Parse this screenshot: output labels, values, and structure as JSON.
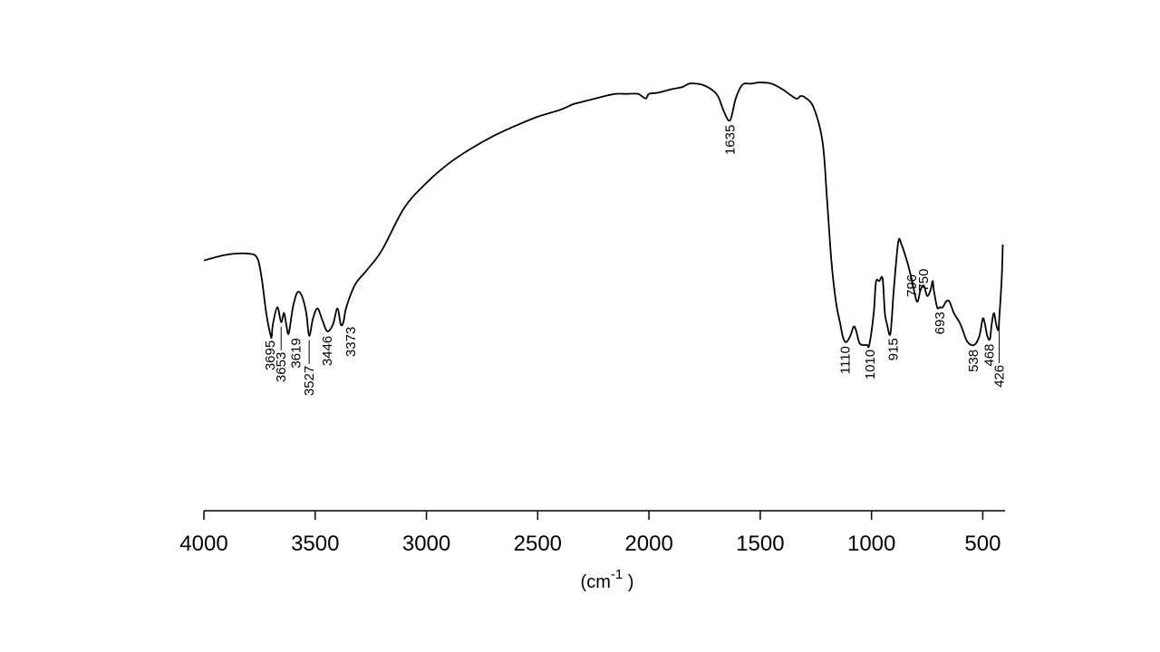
{
  "chart_data": {
    "type": "line",
    "title": "",
    "xlabel": {
      "prefix": "(cm",
      "superscript": "-1",
      "suffix": " )"
    },
    "ylabel": "",
    "xlim": [
      4000,
      400
    ],
    "x_reversed": true,
    "x_ticks": [
      4000,
      3500,
      3000,
      2500,
      2000,
      1500,
      1000,
      500
    ],
    "x_tick_labels": [
      "4000",
      "3500",
      "3000",
      "2500",
      "2000",
      "1500",
      "1000",
      "500"
    ],
    "y_axis_visible": false,
    "grid": false,
    "legend": "none",
    "series": [
      {
        "color": "#000000",
        "x": [
          4000,
          3900,
          3800,
          3760,
          3740,
          3720,
          3700,
          3695,
          3690,
          3670,
          3653,
          3640,
          3630,
          3619,
          3600,
          3580,
          3560,
          3540,
          3527,
          3510,
          3490,
          3470,
          3446,
          3420,
          3400,
          3385,
          3373,
          3360,
          3320,
          3270,
          3200,
          3100,
          3000,
          2900,
          2800,
          2700,
          2600,
          2500,
          2400,
          2340,
          2300,
          2200,
          2150,
          2100,
          2050,
          2015,
          2000,
          1960,
          1900,
          1850,
          1820,
          1790,
          1760,
          1720,
          1690,
          1660,
          1635,
          1610,
          1580,
          1540,
          1500,
          1450,
          1400,
          1340,
          1320,
          1300,
          1260,
          1220,
          1200,
          1180,
          1160,
          1140,
          1130,
          1120,
          1110,
          1095,
          1080,
          1070,
          1055,
          1040,
          1020,
          1010,
          990,
          980,
          965,
          950,
          940,
          930,
          915,
          900,
          880,
          865,
          840,
          820,
          796,
          780,
          765,
          750,
          735,
          725,
          720,
          705,
          693,
          680,
          665,
          650,
          630,
          600,
          570,
          538,
          515,
          500,
          490,
          480,
          468,
          460,
          450,
          440,
          430,
          426,
          415,
          410
        ],
        "y": [
          -1.4,
          -0.9,
          -0.8,
          -1.2,
          -3.0,
          -6.0,
          -8.0,
          -8.0,
          -7.0,
          -5.5,
          -6.8,
          -6.0,
          -7.0,
          -7.8,
          -5.5,
          -4.2,
          -4.5,
          -6.0,
          -8.0,
          -6.5,
          -5.6,
          -6.5,
          -7.6,
          -7.0,
          -5.6,
          -7.0,
          -6.8,
          -5.5,
          -3.5,
          -2.3,
          -0.5,
          3.2,
          5.4,
          7.1,
          8.4,
          9.5,
          10.4,
          11.2,
          11.8,
          12.3,
          12.5,
          13.0,
          13.2,
          13.2,
          13.2,
          12.8,
          13.2,
          13.3,
          13.6,
          13.8,
          14.1,
          14.1,
          14.0,
          13.6,
          13.0,
          11.5,
          10.9,
          12.8,
          14.0,
          14.1,
          14.2,
          14.1,
          13.6,
          12.8,
          13.0,
          12.9,
          12.0,
          9.0,
          4.0,
          -1.5,
          -5.0,
          -7.0,
          -8.0,
          -8.5,
          -8.5,
          -8.0,
          -7.2,
          -7.5,
          -8.6,
          -8.8,
          -8.8,
          -8.8,
          -6.0,
          -3.3,
          -3.2,
          -3.0,
          -6.0,
          -7.0,
          -7.8,
          -4.0,
          0.2,
          0.0,
          -1.5,
          -3.0,
          -5.0,
          -4.0,
          -3.6,
          -4.5,
          -4.0,
          -3.2,
          -4.0,
          -5.5,
          -5.5,
          -5.5,
          -5.0,
          -5.0,
          -6.0,
          -7.0,
          -8.5,
          -8.8,
          -8.0,
          -6.5,
          -7.0,
          -8.0,
          -8.3,
          -7.0,
          -6.0,
          -7.0,
          -7.5,
          -6.5,
          -3.0,
          0.0
        ]
      }
    ],
    "peak_annotations": [
      {
        "label": "3695",
        "x": 3695,
        "side": "below",
        "lead": 0,
        "dx": -2
      },
      {
        "label": "3653",
        "x": 3653,
        "side": "below",
        "lead": 26,
        "dx": 0
      },
      {
        "label": "3619",
        "x": 3619,
        "side": "below",
        "lead": 0,
        "dx": 8
      },
      {
        "label": "3527",
        "x": 3527,
        "side": "below",
        "lead": 26,
        "dx": 0
      },
      {
        "label": "3446",
        "x": 3446,
        "side": "below",
        "lead": 0,
        "dx": 0
      },
      {
        "label": "3373",
        "x": 3373,
        "side": "below",
        "lead": 0,
        "dx": 8
      },
      {
        "label": "1635",
        "x": 1635,
        "side": "below",
        "lead": 0,
        "dx": 0
      },
      {
        "label": "1110",
        "x": 1110,
        "side": "below",
        "lead": 0,
        "dx": -2
      },
      {
        "label": "1010",
        "x": 1010,
        "side": "below",
        "lead": 0,
        "dx": 1
      },
      {
        "label": "915",
        "x": 915,
        "side": "below",
        "lead": 0,
        "dx": 3
      },
      {
        "label": "796",
        "x": 796,
        "side": "above",
        "lead": 0,
        "dx": -6
      },
      {
        "label": "750",
        "x": 750,
        "side": "above",
        "lead": 0,
        "dx": -4
      },
      {
        "label": "693",
        "x": 693,
        "side": "below",
        "lead": 0,
        "dx": 0
      },
      {
        "label": "538",
        "x": 538,
        "side": "below",
        "lead": 0,
        "dx": -1
      },
      {
        "label": "468",
        "x": 468,
        "side": "below",
        "lead": 0,
        "dx": -1
      },
      {
        "label": "426",
        "x": 426,
        "side": "below",
        "lead": 44,
        "dx": 0
      }
    ]
  }
}
